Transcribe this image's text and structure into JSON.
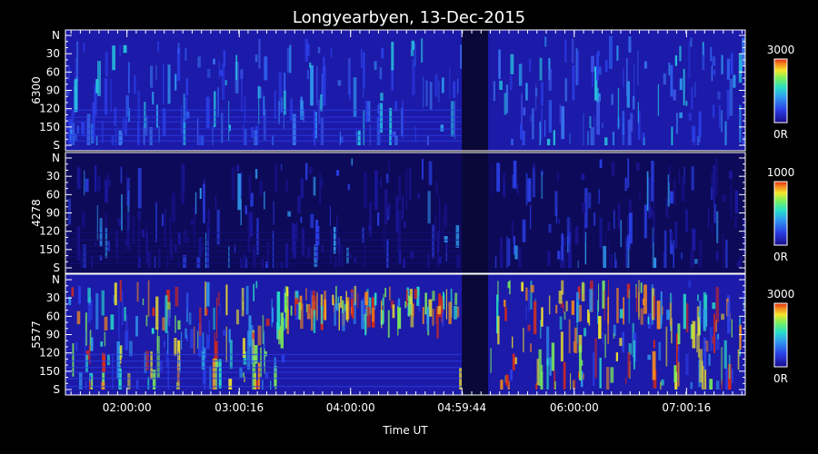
{
  "chart_data": {
    "type": "heatmap",
    "title": "Longyearbyen, 13-Dec-2015",
    "xlabel": "Time UT",
    "x_tick_labels": [
      "02:00:00",
      "03:00:16",
      "04:00:00",
      "04:59:44",
      "06:00:00",
      "07:00:16"
    ],
    "x_tick_values_hours": [
      2.0,
      3.0044,
      4.0,
      4.9956,
      6.0,
      7.0044
    ],
    "xlim_hours": [
      1.45,
      7.53
    ],
    "data_gap_hours": [
      4.995,
      5.23
    ],
    "y_tick_labels": [
      "N",
      "30",
      "60",
      "90",
      "120",
      "150",
      "S"
    ],
    "y_tick_values_deg": [
      0,
      30,
      60,
      90,
      120,
      150,
      180
    ],
    "ylim_deg": [
      0,
      180
    ],
    "panels": [
      {
        "ylabel": "6300",
        "colorbar": {
          "max_label": "3000",
          "min_label": "0R",
          "max": 3000,
          "min": 0
        },
        "colormap": "rainbow"
      },
      {
        "ylabel": "4278",
        "colorbar": {
          "max_label": "1000",
          "min_label": "0R",
          "max": 1000,
          "min": 0
        },
        "colormap": "rainbow"
      },
      {
        "ylabel": "5577",
        "colorbar": {
          "max_label": "3000",
          "min_label": "0R",
          "max": 3000,
          "min": 0
        },
        "colormap": "rainbow"
      }
    ],
    "colors": {
      "background": "#000000",
      "axis": "#ffffff",
      "colormap_stops": [
        "#1a0b8c",
        "#2a3fe6",
        "#2f9af0",
        "#28e0c8",
        "#7cf05a",
        "#f5e62a",
        "#f58a1e",
        "#e02a12"
      ]
    }
  }
}
